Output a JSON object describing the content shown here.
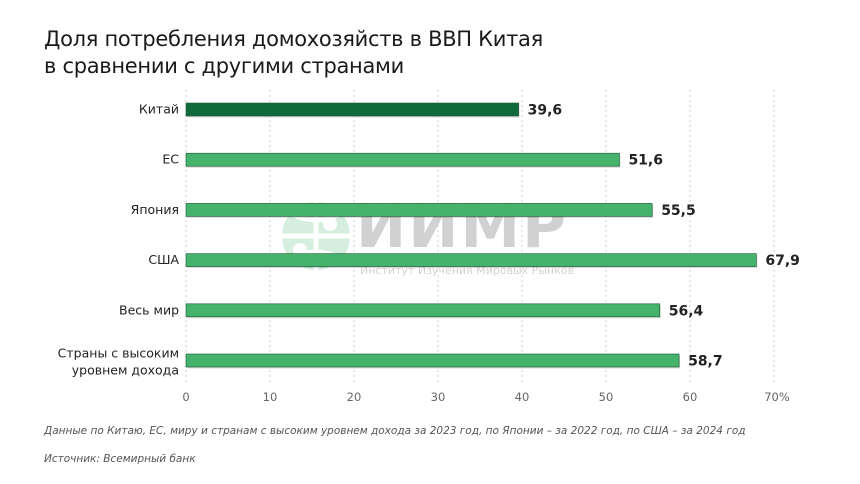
{
  "title_line1": "Доля потребления домохозяйств в ВВП Китая",
  "title_line2": "в сравнении с другими странами",
  "chart_data": {
    "type": "bar",
    "orientation": "horizontal",
    "categories": [
      "Китай",
      "ЕС",
      "Япония",
      "США",
      "Весь мир",
      "Страны с высоким уровнем дохода"
    ],
    "values": [
      39.6,
      51.6,
      55.5,
      67.9,
      56.4,
      58.7
    ],
    "value_labels": [
      "39,6",
      "51,6",
      "55,5",
      "67,9",
      "56,4",
      "58,7"
    ],
    "xlim": [
      0,
      70
    ],
    "xticks": [
      "0",
      "10",
      "20",
      "30",
      "40",
      "50",
      "60",
      "70%"
    ],
    "grid": true,
    "colors": {
      "highlight": "#106b3c",
      "default": "#45b36b"
    }
  },
  "watermark": {
    "logo": "ИИМР",
    "subtitle": "Институт Изучения Мировых Рынков"
  },
  "note": "Данные по Китаю, ЕС, миру и странам с высоким уровнем дохода за 2023 год, по Японии – за 2022 год, по США – за 2024 год",
  "source": "Источник: Всемирный банк"
}
